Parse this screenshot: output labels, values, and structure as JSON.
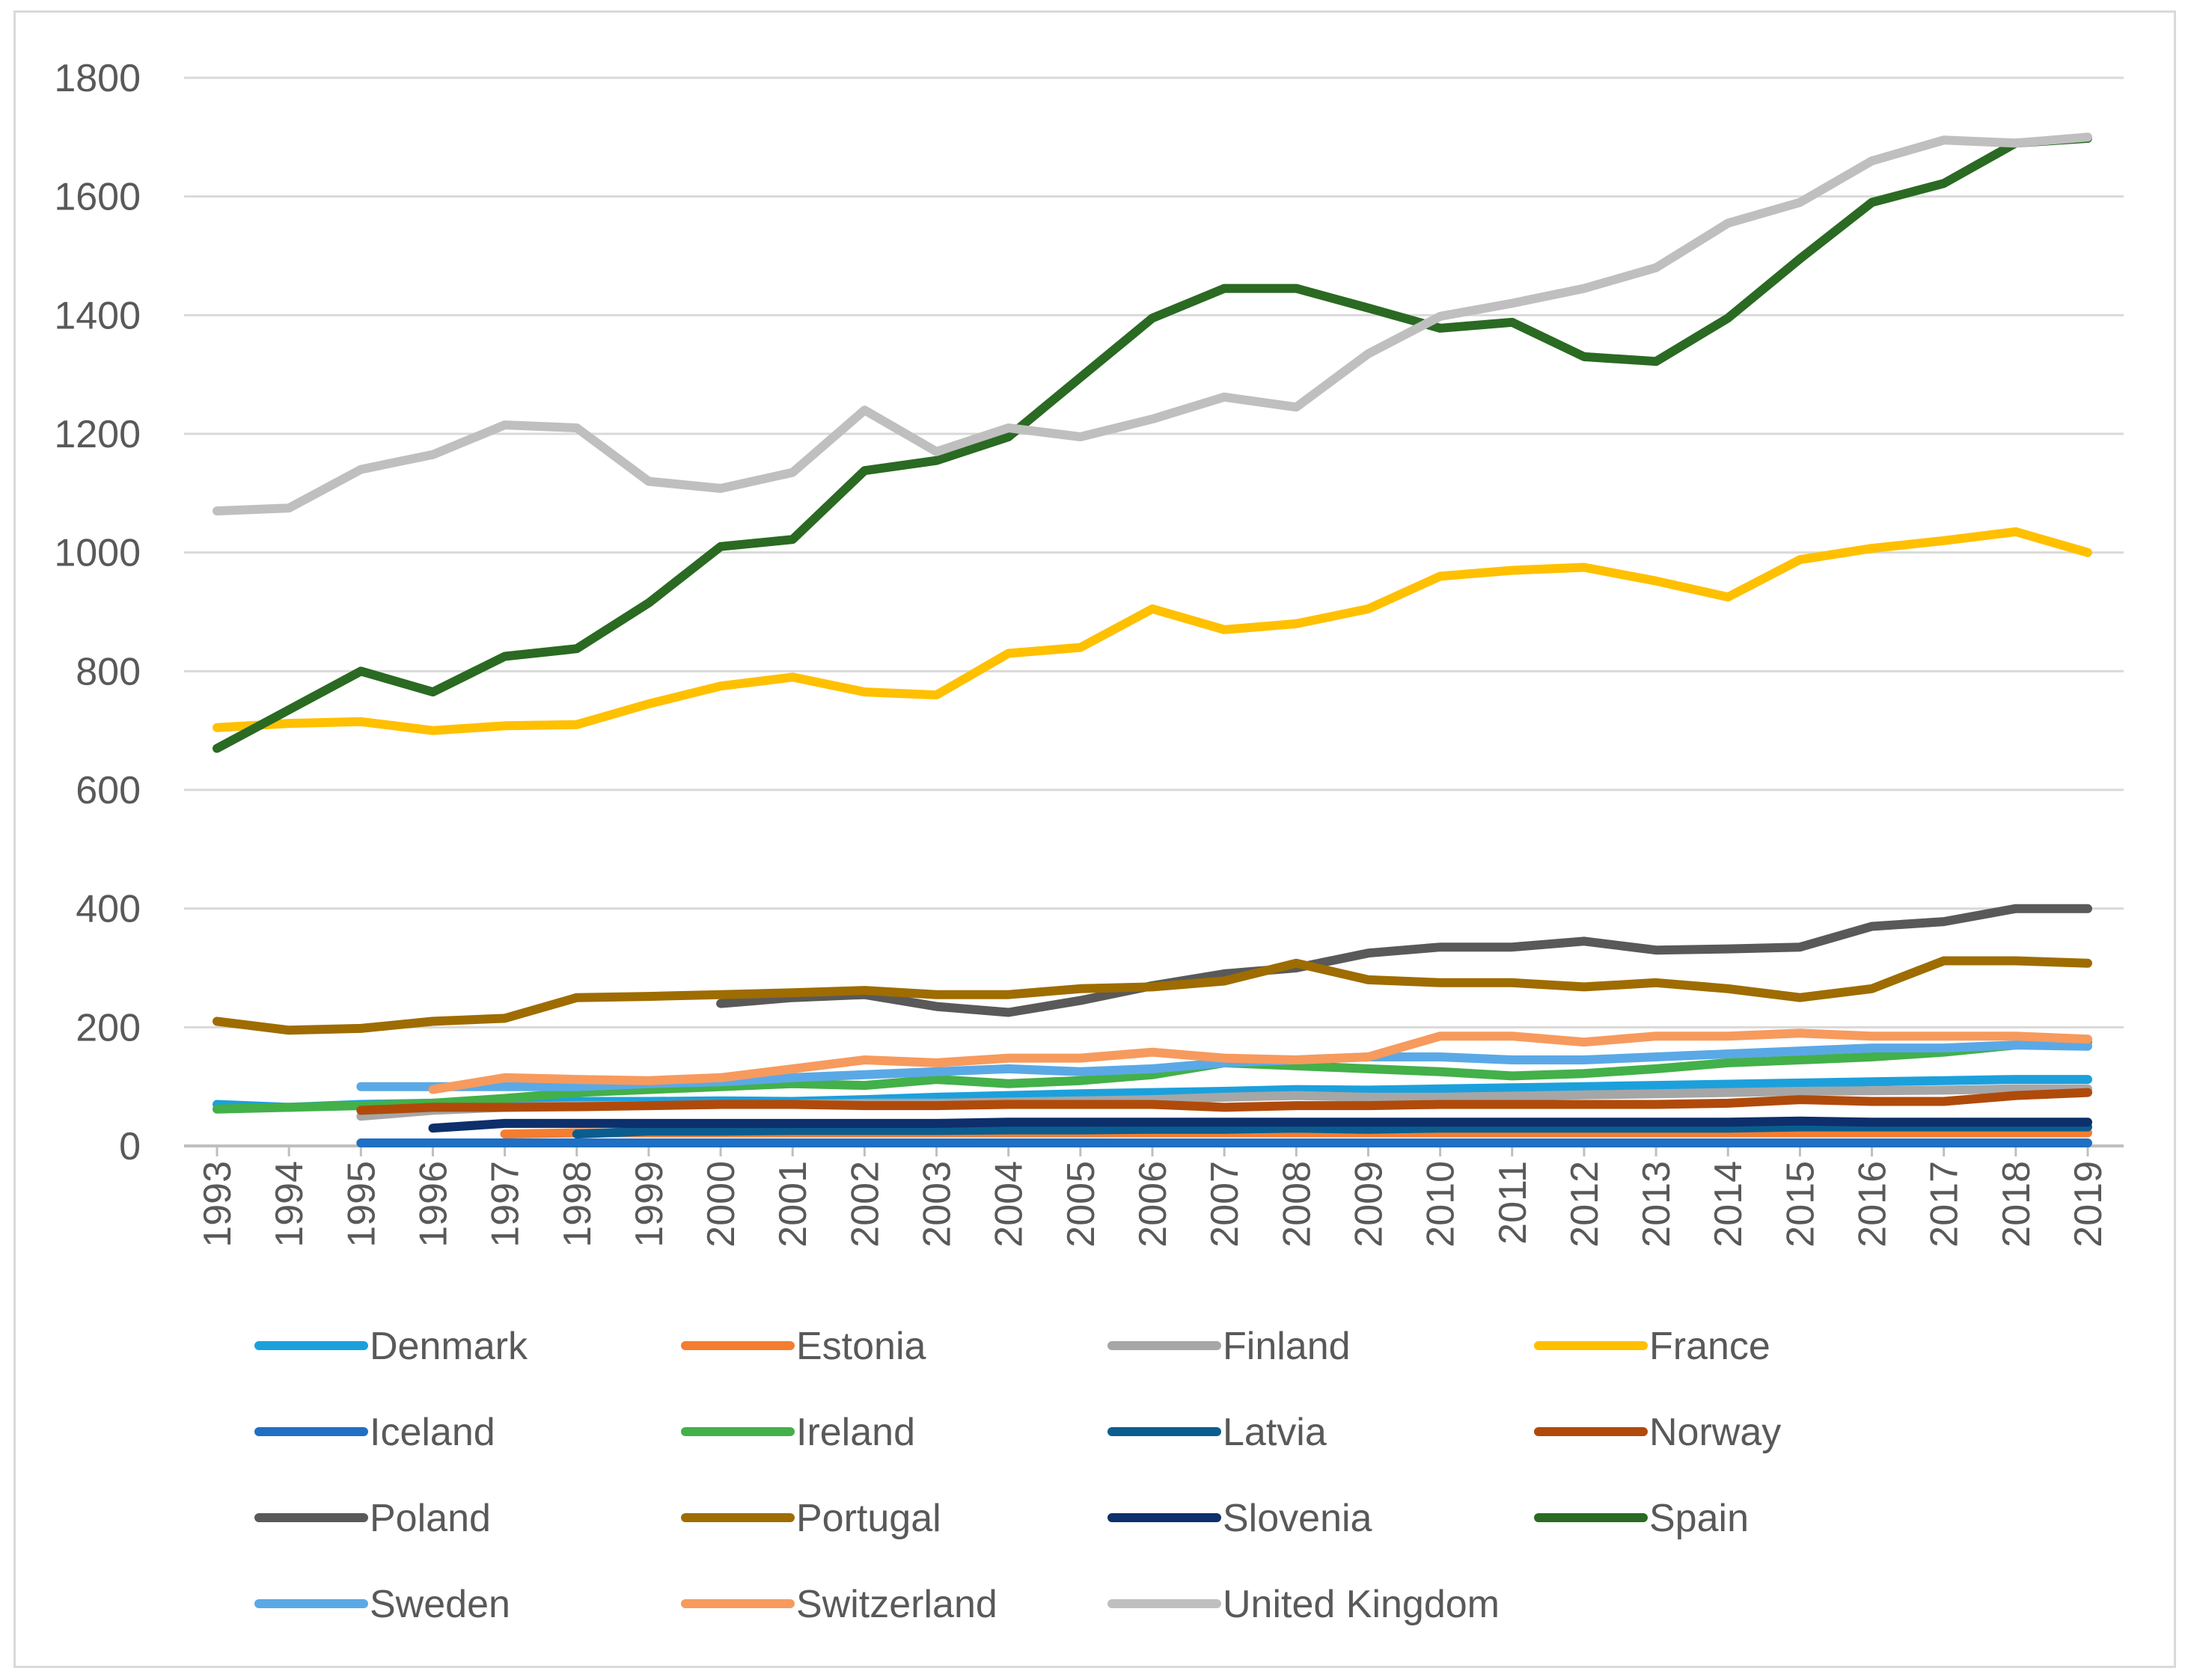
{
  "chart_data": {
    "type": "line",
    "title": "",
    "xlabel": "",
    "ylabel": "",
    "ylim": [
      0,
      1800
    ],
    "yticks": [
      0,
      200,
      400,
      600,
      800,
      1000,
      1200,
      1400,
      1600,
      1800
    ],
    "grid": "horizontal",
    "legend_position": "bottom",
    "categories": [
      "1993",
      "1994",
      "1995",
      "1996",
      "1997",
      "1998",
      "1999",
      "2000",
      "2001",
      "2002",
      "2003",
      "2004",
      "2005",
      "2006",
      "2007",
      "2008",
      "2009",
      "2010",
      "2011",
      "2012",
      "2013",
      "2014",
      "2015",
      "2016",
      "2017",
      "2018",
      "2019"
    ],
    "series": [
      {
        "name": "Denmark",
        "color": "#1CA0DC",
        "values": [
          70,
          65,
          70,
          72,
          74,
          75,
          75,
          76,
          75,
          78,
          82,
          85,
          88,
          90,
          92,
          95,
          94,
          96,
          98,
          100,
          102,
          104,
          106,
          108,
          110,
          112,
          112
        ]
      },
      {
        "name": "Estonia",
        "color": "#F47D30",
        "values": [
          null,
          null,
          null,
          null,
          20,
          22,
          22,
          22,
          22,
          22,
          22,
          22,
          22,
          22,
          22,
          22,
          22,
          22,
          22,
          22,
          22,
          22,
          22,
          22,
          22,
          22,
          22
        ]
      },
      {
        "name": "Finland",
        "color": "#A6A6A6",
        "values": [
          null,
          null,
          50,
          60,
          65,
          68,
          68,
          70,
          70,
          72,
          72,
          74,
          76,
          78,
          82,
          85,
          82,
          82,
          84,
          86,
          88,
          90,
          92,
          93,
          94,
          96,
          96
        ]
      },
      {
        "name": "France",
        "color": "#FFC000",
        "values": [
          705,
          712,
          715,
          700,
          708,
          710,
          745,
          775,
          790,
          765,
          760,
          830,
          840,
          905,
          870,
          880,
          905,
          960,
          970,
          975,
          952,
          925,
          988,
          1007,
          1020,
          1035,
          1000
        ]
      },
      {
        "name": "Iceland",
        "color": "#1F6FC4",
        "values": [
          null,
          null,
          5,
          5,
          5,
          5,
          5,
          5,
          5,
          5,
          5,
          5,
          5,
          5,
          5,
          5,
          5,
          5,
          5,
          5,
          5,
          5,
          5,
          5,
          5,
          5,
          5
        ]
      },
      {
        "name": "Ireland",
        "color": "#43B049",
        "values": [
          62,
          65,
          68,
          72,
          80,
          90,
          95,
          100,
          105,
          102,
          112,
          105,
          110,
          120,
          140,
          135,
          130,
          125,
          118,
          122,
          130,
          140,
          145,
          150,
          158,
          170,
          175
        ]
      },
      {
        "name": "Latvia",
        "color": "#0B5D8F",
        "values": [
          null,
          null,
          null,
          null,
          null,
          20,
          25,
          25,
          26,
          26,
          26,
          27,
          27,
          28,
          28,
          30,
          28,
          30,
          30,
          30,
          30,
          30,
          32,
          32,
          32,
          32,
          32
        ]
      },
      {
        "name": "Norway",
        "color": "#B04A0A",
        "values": [
          null,
          null,
          60,
          65,
          65,
          66,
          68,
          70,
          70,
          68,
          68,
          70,
          70,
          70,
          65,
          68,
          68,
          70,
          70,
          70,
          70,
          72,
          78,
          75,
          75,
          85,
          90
        ]
      },
      {
        "name": "Poland",
        "color": "#595959",
        "values": [
          null,
          null,
          null,
          null,
          null,
          null,
          null,
          240,
          250,
          255,
          235,
          225,
          245,
          270,
          290,
          300,
          325,
          335,
          335,
          345,
          330,
          332,
          335,
          370,
          378,
          400,
          400
        ]
      },
      {
        "name": "Portugal",
        "color": "#9E6C00",
        "values": [
          210,
          195,
          198,
          210,
          215,
          250,
          252,
          255,
          258,
          262,
          255,
          255,
          265,
          268,
          278,
          308,
          280,
          275,
          275,
          268,
          275,
          265,
          250,
          265,
          312,
          312,
          308
        ]
      },
      {
        "name": "Slovenia",
        "color": "#0D2F6B",
        "values": [
          null,
          null,
          null,
          30,
          38,
          38,
          38,
          38,
          38,
          38,
          38,
          40,
          40,
          40,
          40,
          40,
          40,
          40,
          40,
          40,
          40,
          40,
          42,
          40,
          40,
          40,
          40
        ]
      },
      {
        "name": "Spain",
        "color": "#2A6A22",
        "values": [
          670,
          735,
          800,
          765,
          825,
          838,
          915,
          1010,
          1022,
          1138,
          1155,
          1195,
          1295,
          1395,
          1445,
          1445,
          1412,
          1378,
          1388,
          1330,
          1322,
          1395,
          1495,
          1590,
          1622,
          1690,
          1698
        ]
      },
      {
        "name": "Sweden",
        "color": "#5AA9E6",
        "values": [
          null,
          null,
          100,
          100,
          100,
          100,
          105,
          108,
          115,
          120,
          125,
          130,
          125,
          130,
          140,
          145,
          150,
          150,
          145,
          145,
          150,
          155,
          160,
          165,
          165,
          170,
          168
        ]
      },
      {
        "name": "Switzerland",
        "color": "#F79A5E",
        "values": [
          null,
          null,
          null,
          95,
          115,
          112,
          110,
          115,
          130,
          145,
          140,
          148,
          148,
          158,
          148,
          145,
          150,
          185,
          185,
          175,
          185,
          185,
          190,
          185,
          185,
          185,
          180
        ]
      },
      {
        "name": "United Kingdom",
        "color": "#BFBFBF",
        "values": [
          1070,
          1075,
          1140,
          1165,
          1215,
          1210,
          1120,
          1108,
          1135,
          1240,
          1170,
          1210,
          1195,
          1225,
          1262,
          1245,
          1335,
          1398,
          1420,
          1445,
          1480,
          1555,
          1590,
          1660,
          1695,
          1690,
          1700
        ]
      }
    ]
  }
}
